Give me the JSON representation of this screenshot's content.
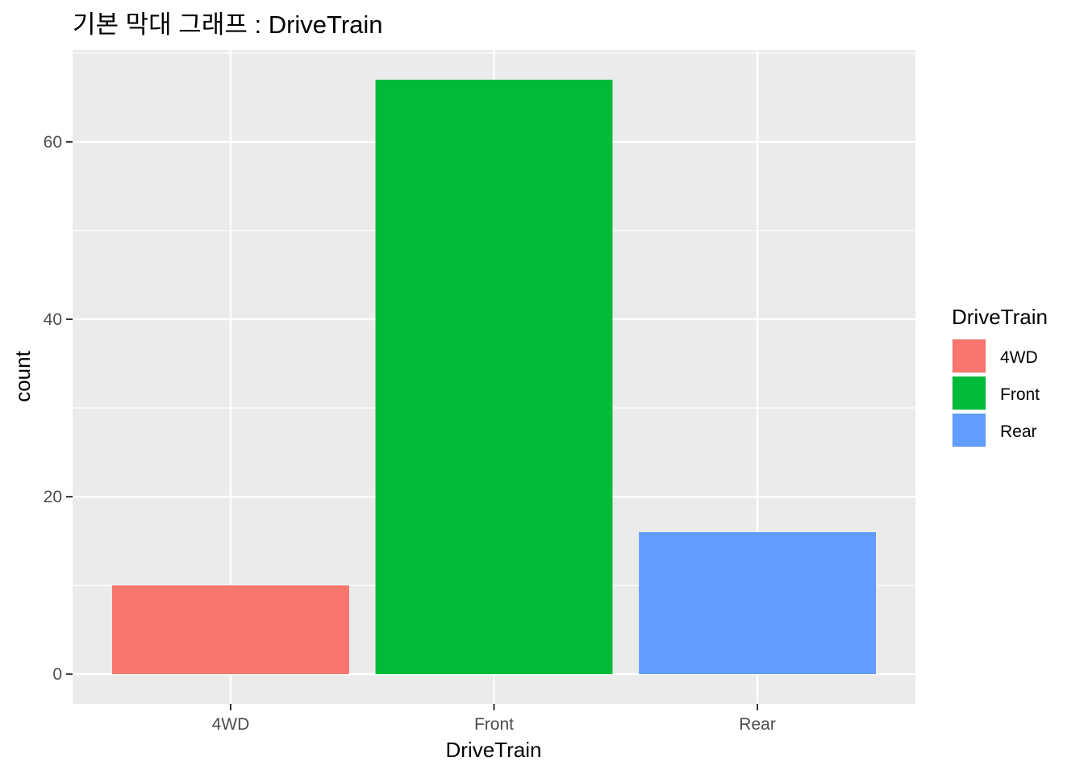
{
  "chart_data": {
    "type": "bar",
    "title": "기본 막대 그래프 : DriveTrain",
    "xlabel": "DriveTrain",
    "ylabel": "count",
    "categories": [
      "4WD",
      "Front",
      "Rear"
    ],
    "values": [
      10,
      67,
      16
    ],
    "colors": [
      "#F8766D",
      "#00BA38",
      "#619CFF"
    ],
    "yticks": [
      0,
      20,
      40,
      60
    ],
    "ylim": [
      -3.35,
      70.35
    ],
    "grid": true,
    "panel_background": "#EBEBEB",
    "legend": {
      "title": "DriveTrain",
      "position": "right",
      "entries": [
        "4WD",
        "Front",
        "Rear"
      ]
    }
  }
}
